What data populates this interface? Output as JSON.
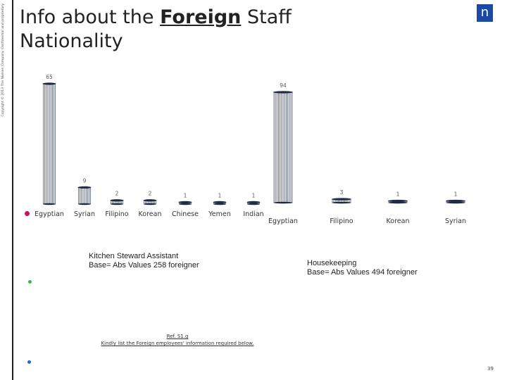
{
  "slide": {
    "copyright": "Copyright © 2013 The Nielsen Company. Confidential and proprietary.",
    "title_prefix": "Info about the ",
    "title_underlined": "Foreign",
    "title_suffix": " Staff Nationality",
    "logo": "n",
    "ref_line1": "Ref. S1.g",
    "ref_line2": "Kindly list the Foreign employees' information required below.",
    "page_number": "39",
    "accent_colors": {
      "pink": "#d0105e",
      "green": "#3bb24a",
      "blue": "#2a66c9",
      "brand": "#1a4aa5"
    }
  },
  "chart_data": [
    {
      "type": "bar",
      "categories": [
        "Egyptian",
        "Syrian",
        "Filipino",
        "Korean",
        "Chinese",
        "Yemen",
        "Indian"
      ],
      "values": [
        65,
        9,
        2,
        2,
        1,
        1,
        1
      ],
      "caption_line1": "Kitchen Steward Assistant",
      "caption_line2": "Base= Abs Values 258 foreigner"
    },
    {
      "type": "bar",
      "categories": [
        "Egyptian",
        "Filipino",
        "Korean",
        "Syrian"
      ],
      "values": [
        94,
        3,
        1,
        1
      ],
      "caption_line1": "Housekeeping",
      "caption_line2": "Base= Abs Values 494 foreigner"
    }
  ]
}
